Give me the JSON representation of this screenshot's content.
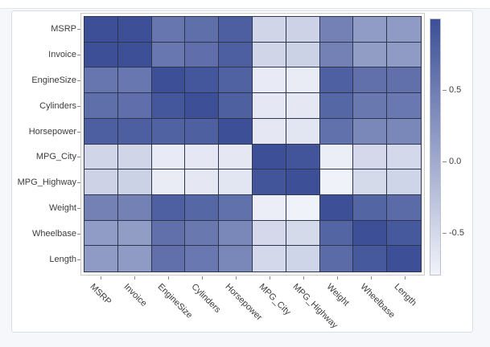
{
  "page": {
    "background": "#f5f7fa",
    "card_border": "#d9dce1"
  },
  "chart_data": {
    "type": "heatmap",
    "title": "",
    "x_categories": [
      "MSRP",
      "Invoice",
      "EngineSize",
      "Cylinders",
      "Horsepower",
      "MPG_City",
      "MPG_Highway",
      "Weight",
      "Wheelbase",
      "Length"
    ],
    "y_categories": [
      "MSRP",
      "Invoice",
      "EngineSize",
      "Cylinders",
      "Horsepower",
      "MPG_City",
      "MPG_Highway",
      "Weight",
      "Wheelbase",
      "Length"
    ],
    "matrix": [
      [
        1.0,
        0.999,
        0.572,
        0.649,
        0.827,
        -0.475,
        -0.438,
        0.453,
        0.152,
        0.167
      ],
      [
        0.999,
        1.0,
        0.565,
        0.645,
        0.824,
        -0.471,
        -0.435,
        0.446,
        0.146,
        0.161
      ],
      [
        0.572,
        0.565,
        1.0,
        0.908,
        0.787,
        -0.709,
        -0.717,
        0.808,
        0.637,
        0.637
      ],
      [
        0.649,
        0.645,
        0.908,
        1.0,
        0.81,
        -0.684,
        -0.676,
        0.742,
        0.546,
        0.548
      ],
      [
        0.827,
        0.824,
        0.787,
        0.81,
        1.0,
        -0.677,
        -0.647,
        0.631,
        0.387,
        0.382
      ],
      [
        -0.475,
        -0.471,
        -0.709,
        -0.684,
        -0.677,
        1.0,
        0.941,
        -0.738,
        -0.507,
        -0.502
      ],
      [
        -0.438,
        -0.435,
        -0.717,
        -0.676,
        -0.647,
        0.941,
        1.0,
        -0.791,
        -0.525,
        -0.466
      ],
      [
        0.453,
        0.446,
        0.808,
        0.742,
        0.631,
        -0.738,
        -0.791,
        1.0,
        0.761,
        0.69
      ],
      [
        0.152,
        0.146,
        0.637,
        0.546,
        0.387,
        -0.507,
        -0.525,
        0.761,
        1.0,
        0.889
      ],
      [
        0.167,
        0.161,
        0.637,
        0.548,
        0.382,
        -0.502,
        -0.466,
        0.69,
        0.889,
        1.0
      ]
    ],
    "color_scale": {
      "domain_min": -0.8,
      "domain_max": 1.0,
      "min_color": "#F1F3FA",
      "max_color": "#3C4F97",
      "grid_line_color": "#2e364f"
    },
    "legend": {
      "position": "right",
      "tick_values": [
        0.5,
        0.0,
        -0.5
      ],
      "tick_labels": [
        "0.5",
        "0.0",
        "-0.5"
      ]
    },
    "axes": {
      "x_label_rotation_deg": 45,
      "grid": "off"
    }
  }
}
